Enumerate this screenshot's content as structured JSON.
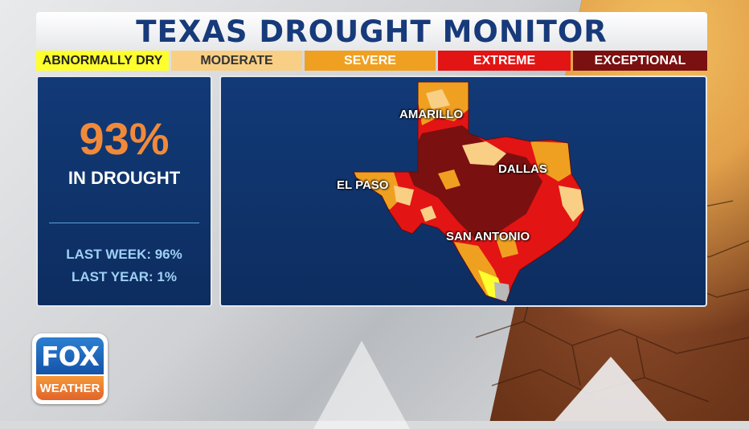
{
  "title": "TEXAS DROUGHT MONITOR",
  "legend": [
    {
      "label": "ABNORMALLY DRY",
      "bg": "#ffff2e",
      "fg": "#222222",
      "width": 165
    },
    {
      "label": "MODERATE",
      "bg": "#f8cf85",
      "fg": "#333333",
      "width": 163
    },
    {
      "label": "SEVERE",
      "bg": "#f0a020",
      "fg": "#ffffff",
      "width": 163
    },
    {
      "label": "EXTREME",
      "bg": "#e31414",
      "fg": "#ffffff",
      "width": 165
    },
    {
      "label": "EXCEPTIONAL",
      "bg": "#7b1010",
      "fg": "#ffffff",
      "width": 167
    }
  ],
  "stats": {
    "percent": "93%",
    "percent_label": "IN DROUGHT",
    "last_week": "LAST WEEK: 96%",
    "last_year": "LAST YEAR: 1%"
  },
  "cities": {
    "amarillo": "AMARILLO",
    "dallas": "DALLAS",
    "el_paso": "EL PASO",
    "san_antonio": "SAN ANTONIO"
  },
  "logo": {
    "top": "FOX",
    "bottom": "WEATHER"
  },
  "colors": {
    "accent_blue": "#173a7a",
    "panel": "#0f3369",
    "percent": "#f08a3a"
  }
}
